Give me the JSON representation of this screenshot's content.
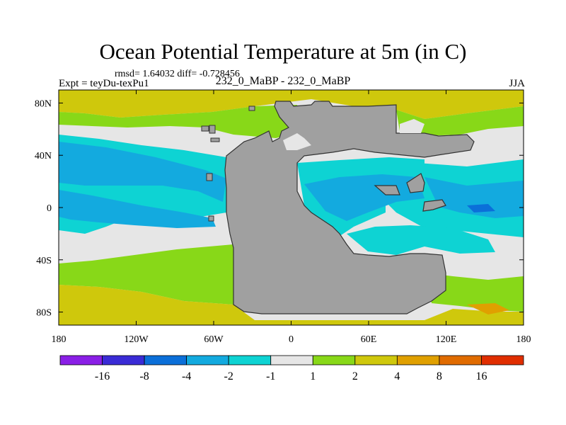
{
  "chart_data": {
    "type": "heatmap",
    "title": "Ocean Potential Temperature at 5m (in C)",
    "stats": {
      "text": "rmsd= 1.64032 diff= -0.728456",
      "rmsd": 1.64032,
      "diff": -0.728456
    },
    "left_label": "Expt = teyDu-texPu1",
    "center_label": "232_0_MaBP - 232_0_MaBP",
    "right_label": "JJA",
    "x_ticks": [
      {
        "value": -180,
        "label": "180"
      },
      {
        "value": -120,
        "label": "120W"
      },
      {
        "value": -60,
        "label": "60W"
      },
      {
        "value": 0,
        "label": "0"
      },
      {
        "value": 60,
        "label": "60E"
      },
      {
        "value": 120,
        "label": "120E"
      },
      {
        "value": 180,
        "label": "180"
      }
    ],
    "y_ticks": [
      {
        "value": 80,
        "label": "80N"
      },
      {
        "value": 40,
        "label": "40N"
      },
      {
        "value": 0,
        "label": "0"
      },
      {
        "value": -40,
        "label": "40S"
      },
      {
        "value": -80,
        "label": "80S"
      }
    ],
    "xlim": [
      -180,
      180
    ],
    "ylim": [
      -90,
      90
    ],
    "colorbar": {
      "bins": [
        {
          "range": "< -16",
          "color": "#8a1fe6"
        },
        {
          "range": "-16 to -8",
          "color": "#3a2bd6"
        },
        {
          "range": "-8 to -4",
          "color": "#0b6fd9"
        },
        {
          "range": "-4 to -2",
          "color": "#13aadf"
        },
        {
          "range": "-2 to -1",
          "color": "#0ed3d3"
        },
        {
          "range": "-1 to 1",
          "color": "#e6e6e6"
        },
        {
          "range": "1 to 2",
          "color": "#88d818"
        },
        {
          "range": "2 to 4",
          "color": "#cfc80c"
        },
        {
          "range": "4 to 8",
          "color": "#e0a000"
        },
        {
          "range": "8 to 16",
          "color": "#e06b00"
        },
        {
          "range": "> 16",
          "color": "#e02e00"
        }
      ],
      "labels": [
        "-16",
        "-8",
        "-4",
        "-2",
        "-1",
        "1",
        "2",
        "4",
        "8",
        "16"
      ]
    },
    "land_color": "#a0a0a0"
  }
}
